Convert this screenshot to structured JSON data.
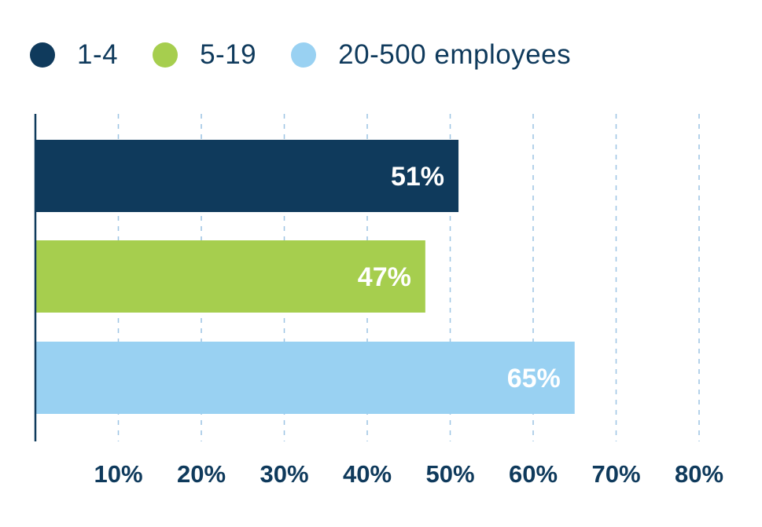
{
  "chart_data": {
    "type": "bar",
    "orientation": "horizontal",
    "categories": [
      "1-4",
      "5-19",
      "20-500 employees"
    ],
    "values": [
      51,
      47,
      65
    ],
    "data_labels": [
      "51%",
      "47%",
      "65%"
    ],
    "colors": [
      "#0f3a5c",
      "#a6ce4e",
      "#99d1f2"
    ],
    "xlim": [
      0,
      80
    ],
    "x_ticks": [
      10,
      20,
      30,
      40,
      50,
      60,
      70,
      80
    ],
    "x_tick_labels": [
      "10%",
      "20%",
      "30%",
      "40%",
      "50%",
      "60%",
      "70%",
      "80%"
    ],
    "grid": "vertical dashed",
    "legend_position": "top-left"
  },
  "legend": [
    {
      "label": "1-4",
      "color": "#0f3a5c"
    },
    {
      "label": "5-19",
      "color": "#a6ce4e"
    },
    {
      "label": "20-500 employees",
      "color": "#99d1f2"
    }
  ],
  "colors": {
    "text": "#0f3a5c",
    "grid": "#9cc4e4",
    "bar_label": "#ffffff"
  }
}
